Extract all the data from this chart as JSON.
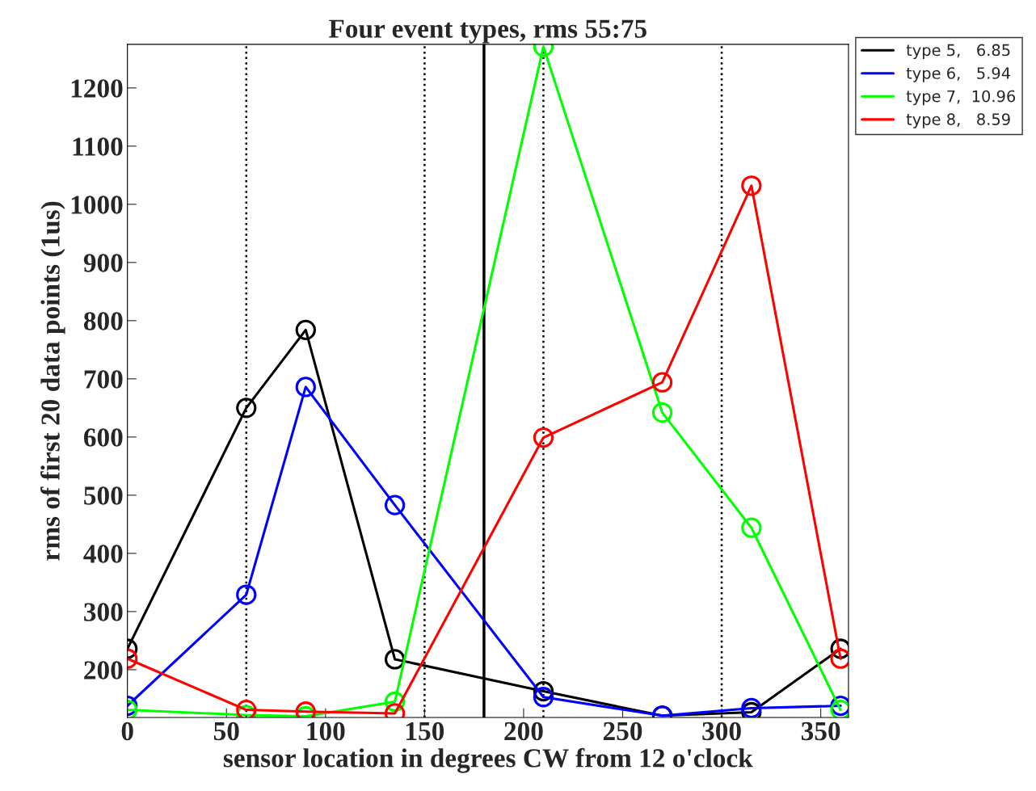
{
  "chart_data": {
    "type": "line",
    "title": "Four event types, rms 55:75",
    "xlabel": "sensor location in degrees CW from 12 o'clock",
    "ylabel": "rms of first 20 data points (1us)",
    "x": [
      0,
      60,
      90,
      135,
      210,
      270,
      315,
      360
    ],
    "series": [
      {
        "name": "type 5,   6.85",
        "color": "#000000",
        "values": [
          236,
          650,
          784,
          218,
          163,
          121,
          127,
          236
        ]
      },
      {
        "name": "type 6,   5.94",
        "color": "#0000ff",
        "values": [
          138,
          329,
          686,
          483,
          153,
          121,
          134,
          138
        ]
      },
      {
        "name": "type 7,  10.96",
        "color": "#00ff00",
        "values": [
          131,
          122,
          120,
          145,
          1271,
          642,
          444,
          131
        ]
      },
      {
        "name": "type 8,   8.59",
        "color": "#ff0000",
        "values": [
          219,
          131,
          128,
          125,
          599,
          694,
          1032,
          219
        ]
      }
    ],
    "xlim": [
      0,
      364
    ],
    "ylim": [
      118,
      1275
    ],
    "xticks": [
      0,
      50,
      100,
      150,
      200,
      250,
      300,
      350
    ],
    "yticks": [
      200,
      300,
      400,
      500,
      600,
      700,
      800,
      900,
      1000,
      1100,
      1200
    ],
    "ref_lines": [
      {
        "axis": "x",
        "value": 60,
        "color": "#000000",
        "line_style": "dotted"
      },
      {
        "axis": "x",
        "value": 150,
        "color": "#000000",
        "line_style": "dotted"
      },
      {
        "axis": "x",
        "value": 180,
        "color": "#000000",
        "line_style": "solid"
      },
      {
        "axis": "x",
        "value": 210,
        "color": "#000000",
        "line_style": "dotted"
      },
      {
        "axis": "x",
        "value": 300,
        "color": "#000000",
        "line_style": "dotted"
      }
    ],
    "marker": "circle",
    "line_style": "solid",
    "grid": false,
    "legend": "top right"
  }
}
